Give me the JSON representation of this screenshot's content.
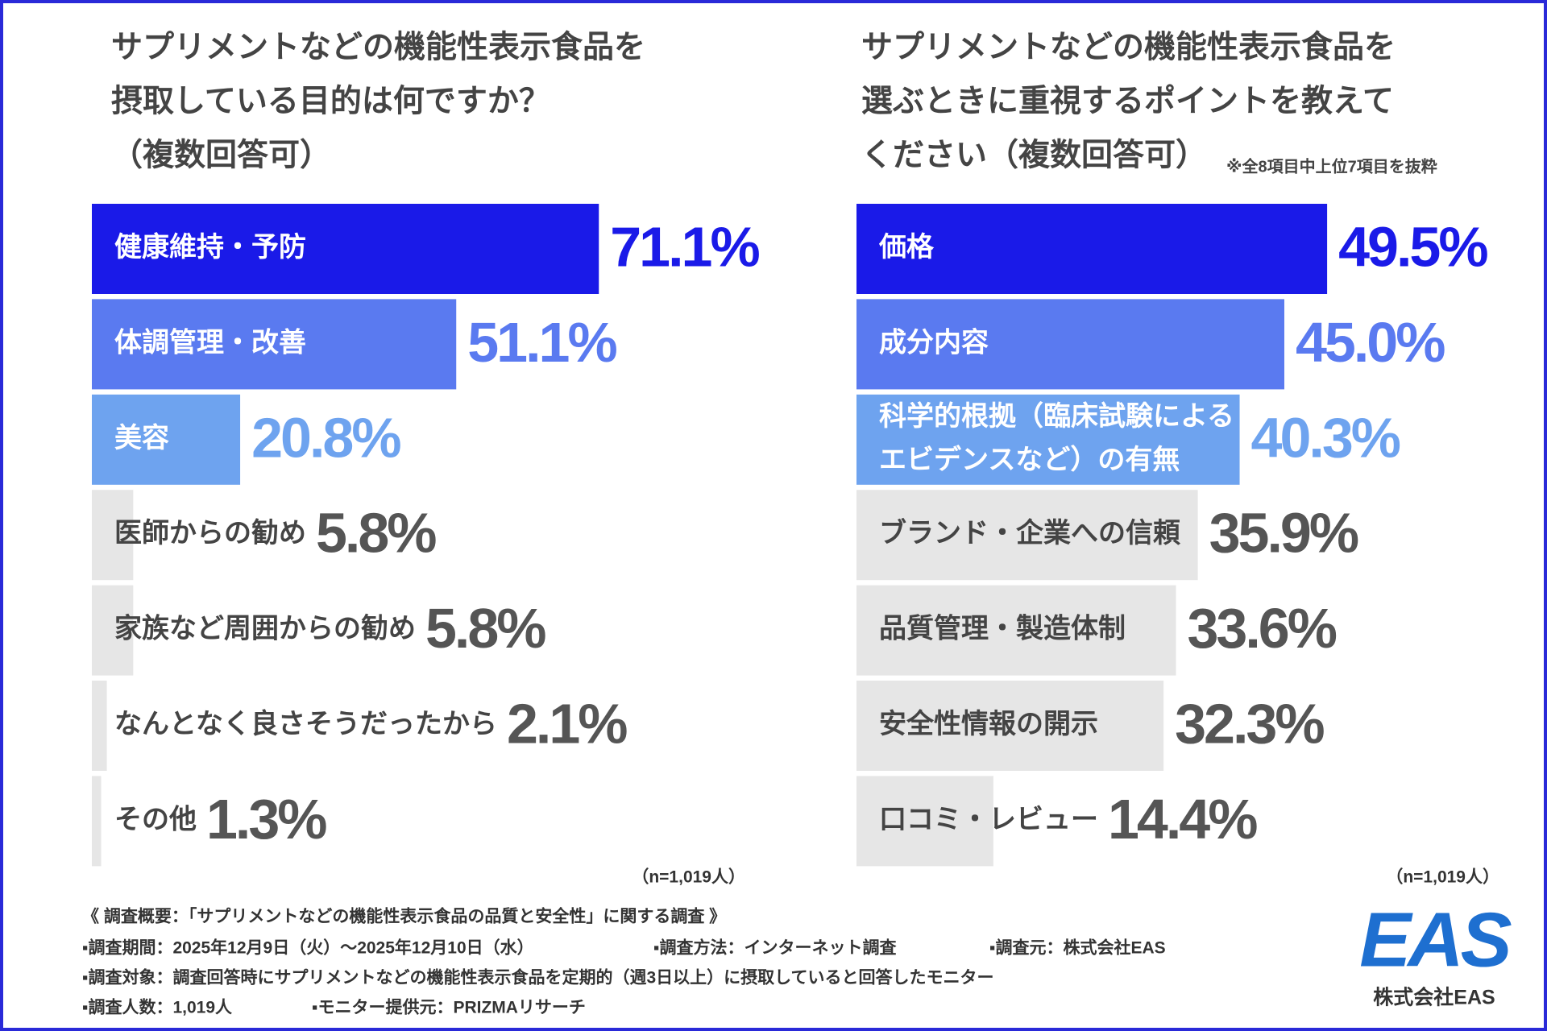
{
  "chart_data": [
    {
      "type": "bar",
      "orientation": "horizontal",
      "title": [
        "サプリメントなどの機能性表示食品を",
        "摂取している目的は何ですか？",
        "（複数回答可）"
      ],
      "categories": [
        "健康維持・予防",
        "体調管理・改善",
        "美容",
        "医師からの勧め",
        "家族など周囲からの勧め",
        "なんとなく良さそうだったから",
        "その他"
      ],
      "values": [
        71.1,
        51.1,
        20.8,
        5.8,
        5.8,
        2.1,
        1.3
      ],
      "value_labels": [
        "71.1%",
        "51.1%",
        "20.8%",
        "5.8%",
        "5.8%",
        "2.1%",
        "1.3%"
      ],
      "colors": [
        "#1a1ae8",
        "#5a7af0",
        "#6ea3ef",
        "#e6e6e6",
        "#e6e6e6",
        "#e6e6e6",
        "#e6e6e6"
      ],
      "sample": "（n=1,019人）"
    },
    {
      "type": "bar",
      "orientation": "horizontal",
      "title": [
        "サプリメントなどの機能性表示食品を",
        "選ぶときに重視するポイントを教えて",
        "ください（複数回答可）"
      ],
      "note": "※全8項目中上位7項目を抜粋",
      "categories": [
        "価格",
        "成分内容",
        "科学的根拠（臨床試験によるエビデンスなど）の有無",
        "ブランド・企業への信頼",
        "品質管理・製造体制",
        "安全性情報の開示",
        "口コミ・レビュー"
      ],
      "values": [
        49.5,
        45.0,
        40.3,
        35.9,
        33.6,
        32.3,
        14.4
      ],
      "value_labels": [
        "49.5%",
        "45.0%",
        "40.3%",
        "35.9%",
        "33.6%",
        "32.3%",
        "14.4%"
      ],
      "colors": [
        "#1a1ae8",
        "#5a7af0",
        "#6ea3ef",
        "#e6e6e6",
        "#e6e6e6",
        "#e6e6e6",
        "#e6e6e6"
      ],
      "sample": "（n=1,019人）"
    }
  ],
  "footer": {
    "heading": "《 調査概要：「サプリメントなどの機能性表示食品の品質と安全性」に関する調査 》",
    "lines": [
      [
        "▪調査期間：2025年12月9日（火）～2025年12月10日（水）",
        "▪調査方法：インターネット調査",
        "▪調査元：株式会社EAS"
      ],
      [
        "▪調査対象：調査回答時にサプリメントなどの機能性表示食品を定期的（週3日以上）に摂取していると回答したモニター"
      ],
      [
        "▪調査人数：1,019人",
        "▪モニター提供元：PRIZMAリサーチ"
      ]
    ],
    "logo": "EAS",
    "logo_company": "株式会社EAS"
  }
}
